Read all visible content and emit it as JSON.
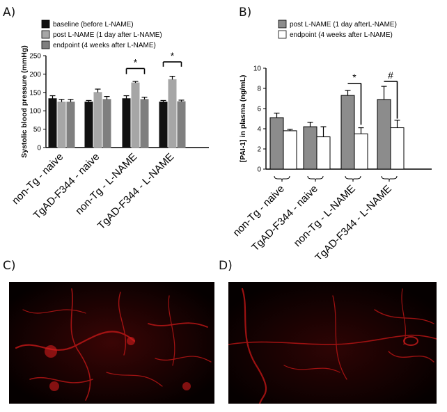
{
  "panels": {
    "a": "A)",
    "b": "B)",
    "c": "C)",
    "d": "D)"
  },
  "colors": {
    "baseline": "#111111",
    "post": "#a6a6a6",
    "endpoint": "#7f7f7f",
    "b_post": "#8c8c8c",
    "b_endpoint": "#ffffff",
    "micro_bg": "#060000",
    "micro_vessel": "#c01a1a"
  },
  "chart_data": [
    {
      "type": "bar",
      "title": "",
      "ylabel": "Systolic blood pressure (mmHg)",
      "xlabel": "",
      "ylim": [
        0,
        250
      ],
      "yticks": [
        "0",
        "50",
        "100",
        "150",
        "200",
        "250"
      ],
      "categories": [
        "non-Tg - naive",
        "TgAD-F344 - naive",
        "non-Tg - L-NAME",
        "TgAD-F344 - L-NAME"
      ],
      "series": [
        {
          "name": "baseline (before L-NAME)",
          "values": [
            133,
            124,
            133,
            124
          ],
          "errors": [
            8,
            4,
            8,
            4
          ]
        },
        {
          "name": "post L-NAME (1 day after L-NAME)",
          "values": [
            124,
            150,
            176,
            185
          ],
          "errors": [
            7,
            9,
            4,
            9
          ]
        },
        {
          "name": "endpoint (4 weeks after L-NAME)",
          "values": [
            124,
            131,
            131,
            125
          ],
          "errors": [
            7,
            8,
            6,
            4
          ]
        }
      ],
      "annotations": [
        {
          "text": "*",
          "category": "non-Tg - L-NAME"
        },
        {
          "text": "*",
          "category": "TgAD-F344 - L-NAME"
        }
      ],
      "legend": "top"
    },
    {
      "type": "bar",
      "title": "",
      "ylabel": "[PAI-1] in plasma (ng/mL)",
      "xlabel": "",
      "ylim": [
        0,
        10
      ],
      "yticks": [
        "0",
        "2",
        "4",
        "6",
        "8",
        "10"
      ],
      "categories": [
        "non-Tg - naive",
        "TgAD-F344 - naive",
        "non-Tg - L-NAME",
        "TgAD-F344 - L-NAME"
      ],
      "series": [
        {
          "name": "post L-NAME (1 day afterL-NAME)",
          "values": [
            5.1,
            4.2,
            7.3,
            6.9
          ],
          "errors": [
            0.45,
            0.45,
            0.5,
            1.3
          ]
        },
        {
          "name": "endpoint (4 weeks after L-NAME)",
          "values": [
            3.8,
            3.2,
            3.5,
            4.1
          ],
          "errors": [
            0.15,
            1.0,
            0.6,
            0.75
          ]
        }
      ],
      "annotations": [
        {
          "text": "*",
          "category": "non-Tg - L-NAME"
        },
        {
          "text": "#",
          "category": "TgAD-F344 - L-NAME"
        }
      ],
      "legend": "top"
    }
  ]
}
